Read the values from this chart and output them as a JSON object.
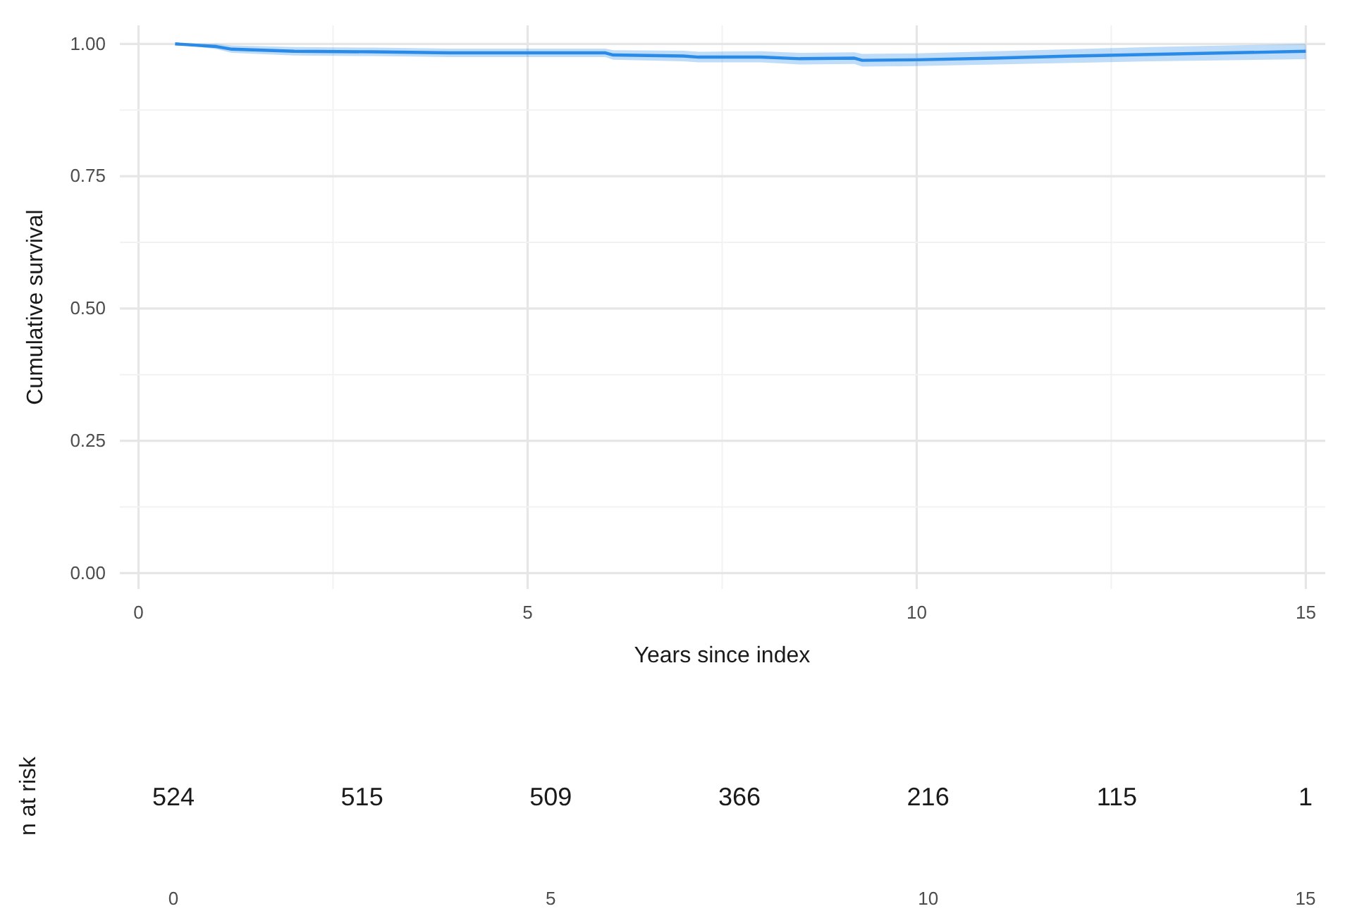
{
  "chart_data": [
    {
      "type": "line",
      "xlabel": "Years since index",
      "ylabel": "Cumulative survival",
      "xlim": [
        -0.24,
        15.25
      ],
      "ylim": [
        -0.03,
        1.035
      ],
      "xticks": [
        0,
        5,
        10,
        15
      ],
      "yticks": [
        {
          "value": 0,
          "label": "0.00"
        },
        {
          "value": 0.25,
          "label": "0.25"
        },
        {
          "value": 0.5,
          "label": "0.50"
        },
        {
          "value": 0.75,
          "label": "0.75"
        },
        {
          "value": 1,
          "label": "1.00"
        }
      ],
      "grid": true,
      "series": [
        {
          "color": "#2a8ae8",
          "x": [
            0.47,
            1.0,
            1.2,
            2,
            3,
            4,
            5,
            6,
            6.1,
            7,
            7.2,
            8,
            8.5,
            9.2,
            9.3,
            10,
            11,
            12,
            13,
            14,
            15
          ],
          "values": [
            1.0,
            0.995,
            0.99,
            0.986,
            0.985,
            0.983,
            0.983,
            0.983,
            0.979,
            0.977,
            0.975,
            0.975,
            0.972,
            0.973,
            0.969,
            0.97,
            0.973,
            0.977,
            0.98,
            0.983,
            0.986
          ],
          "lower": [
            1.0,
            0.99,
            0.983,
            0.978,
            0.977,
            0.975,
            0.975,
            0.975,
            0.97,
            0.967,
            0.965,
            0.965,
            0.961,
            0.962,
            0.957,
            0.958,
            0.961,
            0.964,
            0.967,
            0.969,
            0.971
          ],
          "upper": [
            1.0,
            1.0,
            0.997,
            0.994,
            0.993,
            0.991,
            0.991,
            0.991,
            0.988,
            0.987,
            0.985,
            0.986,
            0.983,
            0.984,
            0.981,
            0.982,
            0.986,
            0.99,
            0.994,
            0.997,
            1.0
          ]
        }
      ]
    },
    {
      "type": "heatmap",
      "ylabel": "n at risk",
      "categories": [
        "0",
        null,
        "5",
        null,
        "10",
        null,
        "15"
      ],
      "y_categories": [
        null
      ],
      "cells": [
        [
          524,
          515,
          509,
          366,
          216,
          115,
          1
        ]
      ],
      "data_labels": true
    }
  ]
}
